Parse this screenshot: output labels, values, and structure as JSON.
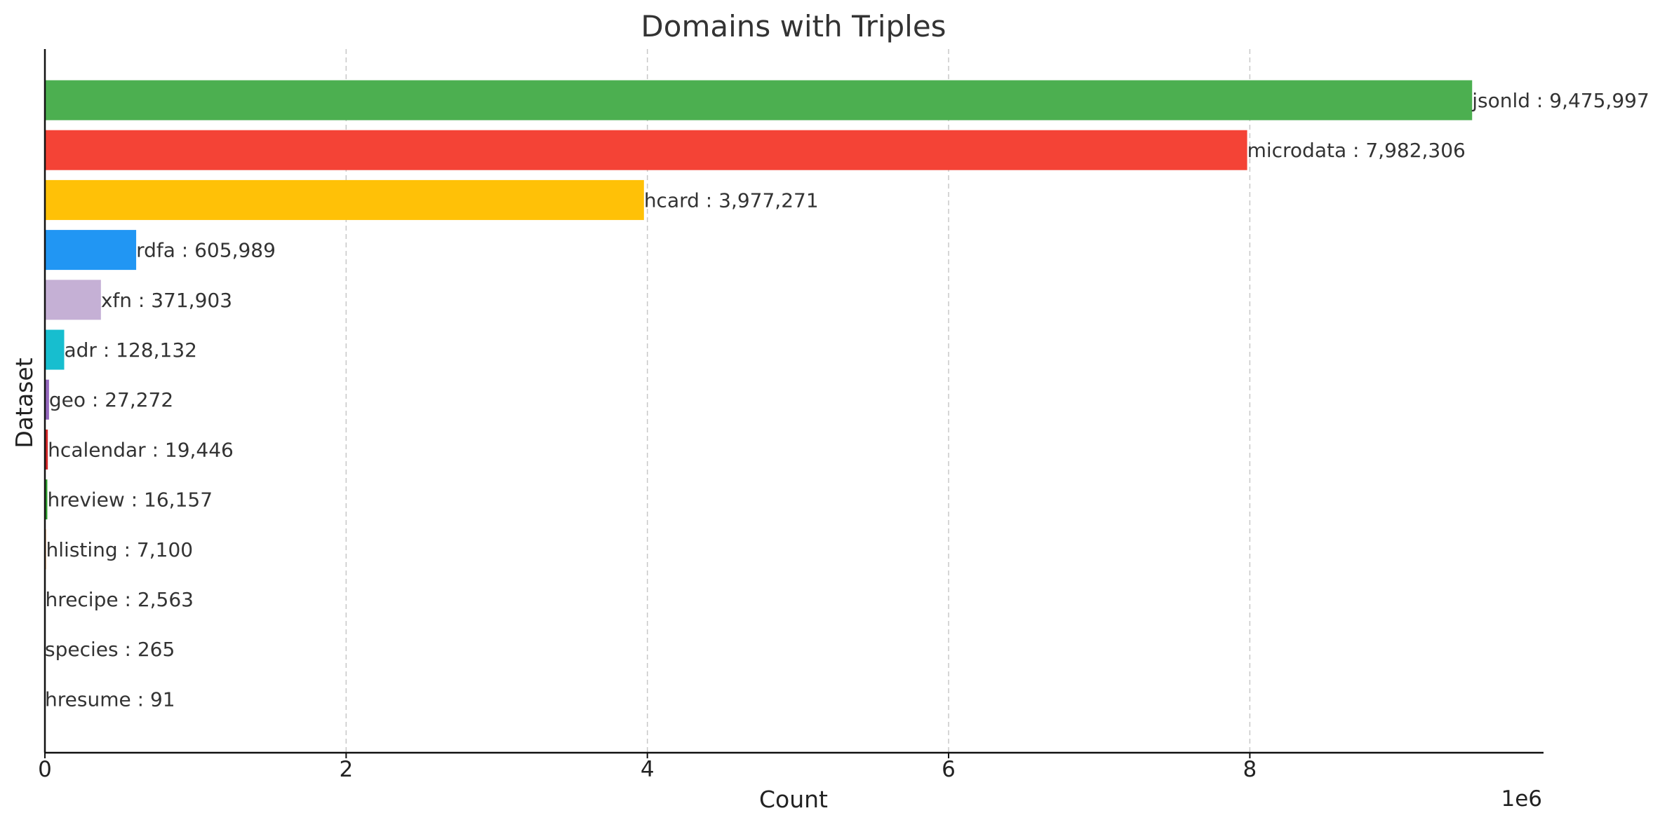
{
  "chart_data": {
    "type": "bar",
    "orientation": "horizontal",
    "title": "Domains with Triples",
    "xlabel": "Count",
    "ylabel": "Dataset",
    "x_offset_text": "1e6",
    "xlim": [
      0,
      9950000
    ],
    "xticks": [
      0,
      2000000,
      4000000,
      6000000,
      8000000
    ],
    "xtick_labels": [
      "0",
      "2",
      "4",
      "6",
      "8"
    ],
    "grid": "x-dashed",
    "categories": [
      "jsonld",
      "microdata",
      "hcard",
      "rdfa",
      "xfn",
      "adr",
      "geo",
      "hcalendar",
      "hreview",
      "hlisting",
      "hrecipe",
      "species",
      "hresume"
    ],
    "values": [
      9475997,
      7982306,
      3977271,
      605989,
      371903,
      128132,
      27272,
      19446,
      16157,
      7100,
      2563,
      265,
      91
    ],
    "labels": [
      "jsonld : 9,475,997",
      "microdata : 7,982,306",
      "hcard : 3,977,271",
      "rdfa : 605,989",
      "xfn : 371,903",
      "adr : 128,132",
      "geo : 27,272",
      "hcalendar : 19,446",
      "hreview : 16,157",
      "hlisting : 7,100",
      "hrecipe : 2,563",
      "species : 265",
      "hresume : 91"
    ],
    "colors": [
      "#4caf50",
      "#f44336",
      "#ffc107",
      "#2196f3",
      "#c5b0d5",
      "#17becf",
      "#9467bd",
      "#d62728",
      "#2ca02c",
      "#ff7f0e",
      "#1f77b4",
      "#8c564b",
      "#e377c2"
    ]
  }
}
